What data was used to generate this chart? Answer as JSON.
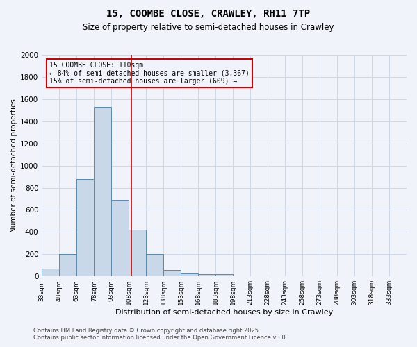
{
  "title": "15, COOMBE CLOSE, CRAWLEY, RH11 7TP",
  "subtitle": "Size of property relative to semi-detached houses in Crawley",
  "xlabel": "Distribution of semi-detached houses by size in Crawley",
  "ylabel": "Number of semi-detached properties",
  "footnote1": "Contains HM Land Registry data © Crown copyright and database right 2025.",
  "footnote2": "Contains public sector information licensed under the Open Government Licence v3.0.",
  "bin_labels": [
    "33sqm",
    "48sqm",
    "63sqm",
    "78sqm",
    "93sqm",
    "108sqm",
    "123sqm",
    "138sqm",
    "153sqm",
    "168sqm",
    "183sqm",
    "198sqm",
    "213sqm",
    "228sqm",
    "243sqm",
    "258sqm",
    "273sqm",
    "288sqm",
    "303sqm",
    "318sqm",
    "333sqm"
  ],
  "bin_starts": [
    33,
    48,
    63,
    78,
    93,
    108,
    123,
    138,
    153,
    168,
    183,
    198,
    213,
    228,
    243,
    258,
    273,
    288,
    303,
    318,
    333
  ],
  "bin_width": 15,
  "bar_heights": [
    70,
    200,
    880,
    1530,
    690,
    420,
    200,
    60,
    25,
    20,
    20,
    0,
    0,
    0,
    0,
    0,
    0,
    0,
    0,
    0,
    0
  ],
  "bar_color": "#c8d8e8",
  "bar_edge_color": "#5a8ab0",
  "grid_color": "#d0d8e8",
  "bg_color": "#f0f4fa",
  "property_size": 110,
  "vline_color": "#cc0000",
  "annotation_line1": "15 COOMBE CLOSE: 110sqm",
  "annotation_line2": "← 84% of semi-detached houses are smaller (3,367)",
  "annotation_line3": "15% of semi-detached houses are larger (609) →",
  "annotation_box_color": "#cc0000",
  "ylim": [
    0,
    2000
  ],
  "yticks": [
    0,
    200,
    400,
    600,
    800,
    1000,
    1200,
    1400,
    1600,
    1800,
    2000
  ]
}
